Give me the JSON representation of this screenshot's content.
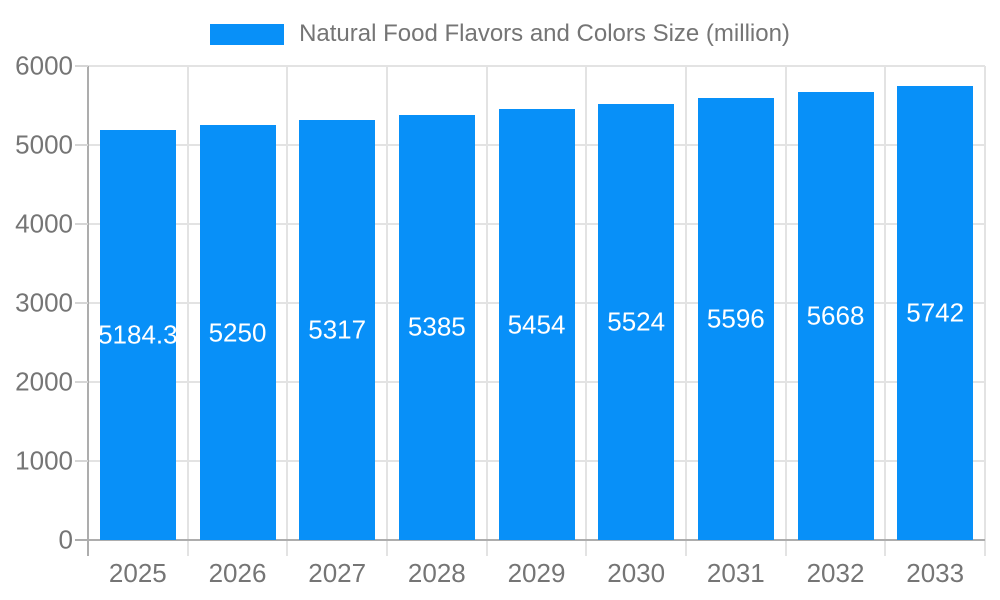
{
  "legend": {
    "label": "Natural Food Flavors and Colors Size (million)"
  },
  "chart_data": {
    "type": "bar",
    "title": "Natural Food Flavors and Colors Size (million)",
    "categories": [
      "2025",
      "2026",
      "2027",
      "2028",
      "2029",
      "2030",
      "2031",
      "2032",
      "2033"
    ],
    "values": [
      5184.3,
      5250,
      5317,
      5385,
      5454,
      5524,
      5596,
      5668,
      5742
    ],
    "value_labels": [
      "5184.3",
      "5250",
      "5317",
      "5385",
      "5454",
      "5524",
      "5596",
      "5668",
      "5742"
    ],
    "xlabel": "",
    "ylabel": "",
    "ylim": [
      0,
      6000
    ],
    "yticks": [
      0,
      1000,
      2000,
      3000,
      4000,
      5000,
      6000
    ],
    "grid": true,
    "legend_position": "top",
    "colors": {
      "bar": "#0890F8",
      "grid": "#E3E3E3",
      "axis": "#ADADAD",
      "tick": "#D6D6D6",
      "tick_label": "#757575",
      "value_label": "#FFFFFF",
      "background": "#FFFFFF"
    }
  }
}
